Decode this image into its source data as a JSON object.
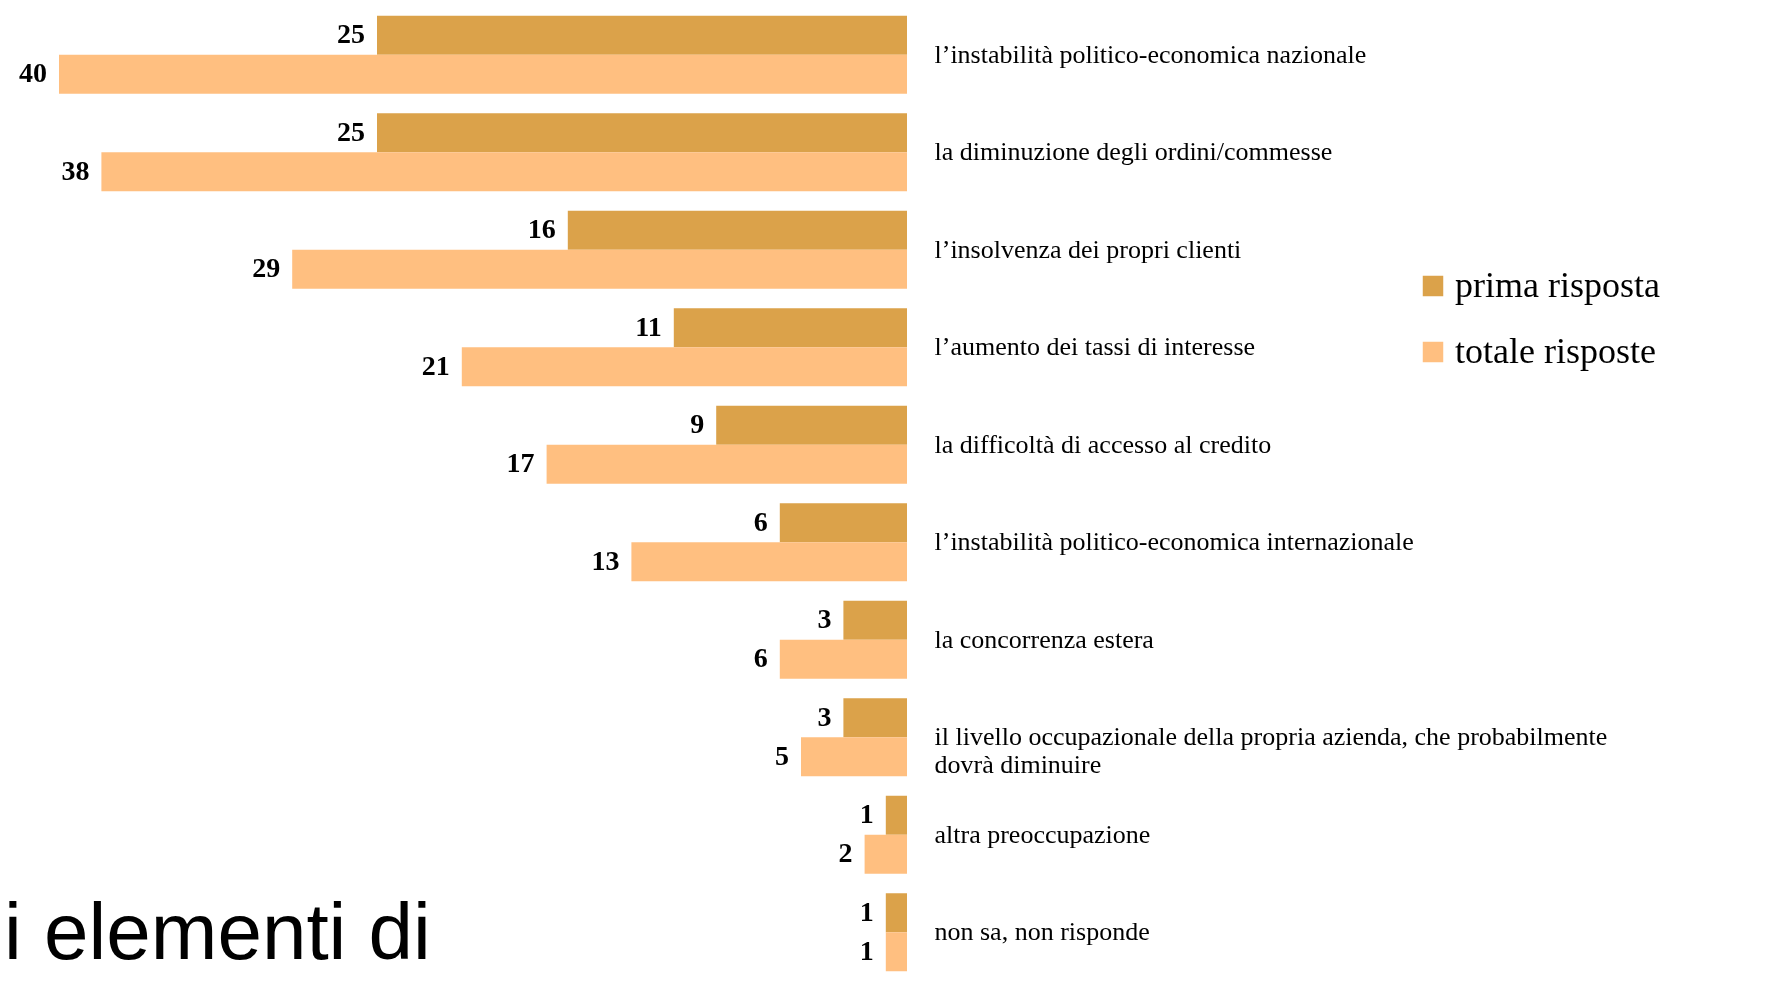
{
  "chart_data": {
    "type": "bar",
    "orientation": "horizontal",
    "categories": [
      "l’instabilità politico-economica nazionale",
      "la diminuzione degli ordini/commesse",
      "l’insolvenza dei propri clienti",
      "l’aumento dei tassi di interesse",
      "la difficoltà di accesso al credito",
      "l’instabilità politico-economica internazionale",
      "la concorrenza estera",
      "il livello occupazionale della propria azienda, che probabilmente dovrà diminuire",
      "altra preoccupazione",
      "non sa, non risponde"
    ],
    "series": [
      {
        "name": "prima risposta",
        "color": "#dba24a",
        "values": [
          25,
          25,
          16,
          11,
          9,
          6,
          3,
          3,
          1,
          1
        ]
      },
      {
        "name": "totale risposte",
        "color": "#ffbf80",
        "values": [
          40,
          38,
          29,
          21,
          17,
          13,
          6,
          5,
          2,
          1
        ]
      }
    ],
    "data_labels": true,
    "legend": "right",
    "annotations": [
      "i elementi di"
    ]
  }
}
